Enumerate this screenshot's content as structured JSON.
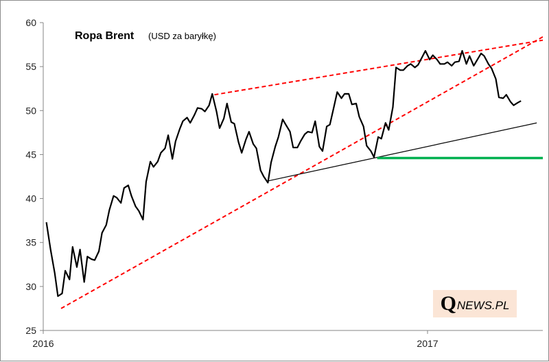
{
  "chart_data": {
    "type": "line",
    "title": "Ropa Brent",
    "subtitle": "(USD za baryłkę)",
    "xlabel": "",
    "ylabel": "",
    "x_tick_labels": [
      "2016",
      "2017"
    ],
    "y_ticks": [
      25,
      30,
      35,
      40,
      45,
      50,
      55,
      60
    ],
    "ylim": [
      25,
      60
    ],
    "grid": false,
    "legend": "none",
    "series": [
      {
        "color": "#000000",
        "x": [
          "2016-01-04",
          "2016-01-08",
          "2016-01-12",
          "2016-01-15",
          "2016-01-19",
          "2016-01-22",
          "2016-01-26",
          "2016-01-29",
          "2016-02-02",
          "2016-02-05",
          "2016-02-09",
          "2016-02-12",
          "2016-02-16",
          "2016-02-19",
          "2016-02-23",
          "2016-02-26",
          "2016-03-01",
          "2016-03-04",
          "2016-03-08",
          "2016-03-11",
          "2016-03-15",
          "2016-03-18",
          "2016-03-22",
          "2016-03-25",
          "2016-03-29",
          "2016-04-01",
          "2016-04-05",
          "2016-04-08",
          "2016-04-12",
          "2016-04-15",
          "2016-04-19",
          "2016-04-22",
          "2016-04-26",
          "2016-04-29",
          "2016-05-03",
          "2016-05-06",
          "2016-05-10",
          "2016-05-13",
          "2016-05-17",
          "2016-05-20",
          "2016-05-24",
          "2016-05-27",
          "2016-05-31",
          "2016-06-03",
          "2016-06-07",
          "2016-06-10",
          "2016-06-14",
          "2016-06-17",
          "2016-06-21",
          "2016-06-24",
          "2016-06-28",
          "2016-07-01",
          "2016-07-05",
          "2016-07-08",
          "2016-07-12",
          "2016-07-15",
          "2016-07-19",
          "2016-07-22",
          "2016-07-26",
          "2016-07-29",
          "2016-08-02",
          "2016-08-05",
          "2016-08-09",
          "2016-08-12",
          "2016-08-16",
          "2016-08-19",
          "2016-08-23",
          "2016-08-26",
          "2016-08-30",
          "2016-09-02",
          "2016-09-06",
          "2016-09-09",
          "2016-09-13",
          "2016-09-16",
          "2016-09-20",
          "2016-09-23",
          "2016-09-27",
          "2016-09-30",
          "2016-10-04",
          "2016-10-07",
          "2016-10-11",
          "2016-10-14",
          "2016-10-18",
          "2016-10-21",
          "2016-10-25",
          "2016-10-28",
          "2016-11-01",
          "2016-11-04",
          "2016-11-08",
          "2016-11-11",
          "2016-11-15",
          "2016-11-18",
          "2016-11-22",
          "2016-11-25",
          "2016-11-29",
          "2016-12-02",
          "2016-12-06",
          "2016-12-09",
          "2016-12-13",
          "2016-12-16",
          "2016-12-20",
          "2016-12-23",
          "2016-12-27",
          "2016-12-30",
          "2017-01-03",
          "2017-01-06",
          "2017-01-10",
          "2017-01-13",
          "2017-01-17",
          "2017-01-20",
          "2017-01-24",
          "2017-01-27",
          "2017-01-31",
          "2017-02-03",
          "2017-02-07",
          "2017-02-10",
          "2017-02-14",
          "2017-02-17",
          "2017-02-21",
          "2017-02-24",
          "2017-02-28",
          "2017-03-03",
          "2017-03-07",
          "2017-03-10",
          "2017-03-14",
          "2017-03-17",
          "2017-03-21",
          "2017-03-24",
          "2017-03-28",
          "2017-03-31"
        ],
        "values": [
          37.3,
          34.2,
          31.5,
          28.9,
          29.2,
          31.8,
          30.8,
          34.5,
          32.2,
          34.2,
          30.5,
          33.4,
          33.1,
          33.0,
          34.0,
          36.1,
          37.0,
          38.7,
          40.3,
          40.1,
          39.5,
          41.2,
          41.5,
          40.3,
          39.1,
          38.6,
          37.6,
          41.9,
          44.2,
          43.6,
          44.2,
          45.2,
          45.7,
          47.2,
          44.5,
          46.5,
          47.9,
          48.8,
          49.2,
          48.6,
          49.5,
          50.3,
          50.2,
          49.9,
          50.6,
          51.9,
          49.9,
          48.0,
          49.1,
          50.8,
          48.7,
          48.5,
          46.4,
          45.2,
          46.7,
          47.6,
          46.2,
          45.7,
          43.2,
          42.5,
          41.8,
          44.1,
          45.9,
          47.0,
          49.0,
          48.4,
          47.6,
          45.8,
          45.8,
          46.5,
          47.3,
          47.6,
          47.5,
          48.8,
          45.9,
          45.4,
          48.2,
          48.4,
          50.5,
          52.1,
          51.4,
          51.9,
          51.9,
          50.7,
          50.8,
          49.3,
          48.2,
          46.0,
          45.4,
          44.7,
          47.0,
          46.8,
          48.6,
          47.8,
          50.4,
          54.9,
          54.6,
          54.6,
          55.1,
          55.3,
          54.9,
          55.2,
          56.1,
          56.8,
          55.8,
          56.3,
          55.8,
          55.3,
          55.3,
          55.5,
          55.1,
          55.5,
          55.6,
          56.8,
          55.3,
          56.2,
          55.1,
          55.7,
          56.5,
          56.2,
          55.3,
          54.8,
          53.6,
          51.5,
          51.4,
          51.8,
          51.0,
          50.6,
          50.9,
          51.1
        ]
      }
    ],
    "trendlines": [
      {
        "style": "dashed",
        "color": "#ff0000",
        "from": {
          "x": "2016-01-18",
          "y": 27.5
        },
        "to": {
          "x": "2017-04-30",
          "y": 59.0
        }
      },
      {
        "style": "dashed",
        "color": "#ff0000",
        "from": {
          "x": "2016-06-12",
          "y": 51.8
        },
        "to": {
          "x": "2017-06-10",
          "y": 59.0
        }
      },
      {
        "style": "solid",
        "color": "#000000",
        "from": {
          "x": "2016-08-02",
          "y": 42.0
        },
        "to": {
          "x": "2017-04-15",
          "y": 48.6
        }
      },
      {
        "style": "solid",
        "color": "#00b050",
        "from": {
          "x": "2016-11-14",
          "y": 44.6
        },
        "to": {
          "x": "2017-05-20",
          "y": 44.6
        }
      }
    ]
  },
  "logo": {
    "q": "Q",
    "rest": "NEWS.PL",
    "background": "#fbe5d6"
  }
}
